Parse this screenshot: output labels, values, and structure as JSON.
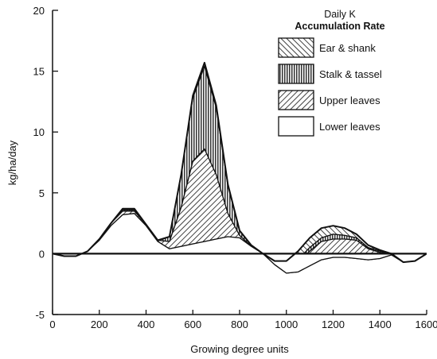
{
  "chart_data": {
    "type": "area",
    "xlabel": "Growing degree units",
    "ylabel": "kg/ha/day",
    "xlim": [
      0,
      1600
    ],
    "ylim": [
      -5,
      20
    ],
    "xticks": [
      "0",
      "200",
      "400",
      "600",
      "800",
      "1000",
      "1200",
      "1400",
      "1600"
    ],
    "yticks": [
      "-5",
      "0",
      "5",
      "10",
      "15",
      "20"
    ],
    "legend": {
      "title_line1": "Daily K",
      "title_line2": "Accumulation Rate",
      "placement": "top-right"
    },
    "x": [
      0,
      50,
      100,
      150,
      200,
      250,
      300,
      350,
      400,
      450,
      500,
      550,
      600,
      650,
      700,
      750,
      800,
      850,
      900,
      950,
      1000,
      1050,
      1100,
      1150,
      1200,
      1250,
      1300,
      1350,
      1400,
      1450,
      1500,
      1550,
      1600
    ],
    "series": [
      {
        "name": "Lower leaves",
        "pattern": "blank",
        "values": [
          0,
          -0.2,
          -0.2,
          0.2,
          1.1,
          2.3,
          3.2,
          3.3,
          2.3,
          1.0,
          0.4,
          0.6,
          0.8,
          1.0,
          1.2,
          1.4,
          1.3,
          0.6,
          0,
          -0.9,
          -1.6,
          -1.5,
          -1.0,
          -0.5,
          -0.3,
          -0.3,
          -0.4,
          -0.5,
          -0.4,
          -0.1,
          -0.7,
          -0.6,
          0
        ]
      },
      {
        "name": "Upper leaves",
        "pattern": "diagonal",
        "values": [
          0,
          0,
          0,
          0,
          0.1,
          0.2,
          0.3,
          0.2,
          0.1,
          0.1,
          0.6,
          3.2,
          6.8,
          7.6,
          5.3,
          1.9,
          0.2,
          0,
          0,
          0.2,
          0.5,
          0.8,
          1.2,
          1.5,
          1.5,
          1.5,
          1.5,
          0.9,
          0.5,
          0.1,
          0,
          0,
          0
        ]
      },
      {
        "name": "Stalk & tassel",
        "pattern": "vertical",
        "values": [
          0,
          0,
          0,
          0,
          0,
          0,
          0.1,
          0.1,
          0,
          0,
          0.4,
          2.7,
          5.2,
          6.8,
          5.5,
          2.3,
          0.4,
          0.1,
          0,
          0,
          0.1,
          0.2,
          0.3,
          0.3,
          0.4,
          0.3,
          0.2,
          0.1,
          0.1,
          0,
          0,
          0,
          0
        ]
      },
      {
        "name": "Ear & shank",
        "pattern": "backslash",
        "values": [
          0,
          0,
          0,
          0,
          0,
          0,
          0.1,
          0.1,
          0,
          0,
          0,
          0,
          0.2,
          0.3,
          0.2,
          0.1,
          0,
          0,
          0,
          0.1,
          0.4,
          0.7,
          0.8,
          0.8,
          0.7,
          0.6,
          0.3,
          0.2,
          0.1,
          0,
          0,
          0,
          0
        ]
      }
    ]
  }
}
